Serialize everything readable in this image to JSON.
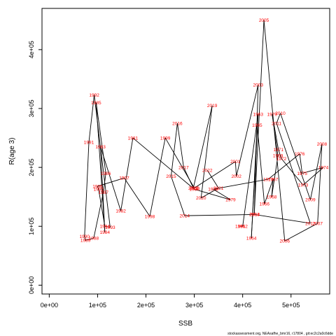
{
  "chart_data": {
    "type": "line",
    "xlabel": "SSB",
    "ylabel": "R(age 3)",
    "xlim": [
      -15000,
      580000
    ],
    "ylim": [
      -15000,
      470000
    ],
    "x_ticks": [
      0,
      100000,
      200000,
      300000,
      400000,
      500000
    ],
    "x_tick_labels": [
      "0e+00",
      "1e+05",
      "2e+05",
      "3e+05",
      "4e+05",
      "5e+05"
    ],
    "y_ticks": [
      0,
      100000,
      200000,
      300000,
      400000
    ],
    "y_tick_labels": [
      "0e+00",
      "1e+05",
      "2e+05",
      "3e+05",
      "4e+05"
    ],
    "grid": false,
    "line_color": "#000000",
    "label_color": "#ff0000",
    "points": [
      {
        "year": "1961",
        "x": 395000,
        "y": 100000
      },
      {
        "year": "1962",
        "x": 400000,
        "y": 100000
      },
      {
        "year": "1963",
        "x": 432000,
        "y": 290000
      },
      {
        "year": "1964",
        "x": 418000,
        "y": 80000
      },
      {
        "year": "1965",
        "x": 430000,
        "y": 272000
      },
      {
        "year": "1966",
        "x": 445000,
        "y": 138000
      },
      {
        "year": "1967",
        "x": 463000,
        "y": 180000
      },
      {
        "year": "1968",
        "x": 460000,
        "y": 150000
      },
      {
        "year": "1969",
        "x": 473000,
        "y": 220000
      },
      {
        "year": "1970",
        "x": 461000,
        "y": 290000
      },
      {
        "year": "1971",
        "x": 474000,
        "y": 230000
      },
      {
        "year": "1972",
        "x": 480000,
        "y": 215000
      },
      {
        "year": "1973",
        "x": 525000,
        "y": 170000
      },
      {
        "year": "1974",
        "x": 567000,
        "y": 200000
      },
      {
        "year": "1975",
        "x": 523000,
        "y": 190000
      },
      {
        "year": "1976",
        "x": 518000,
        "y": 223000
      },
      {
        "year": "1977",
        "x": 453000,
        "y": 180000
      },
      {
        "year": "1978",
        "x": 339000,
        "y": 163000
      },
      {
        "year": "1979",
        "x": 375000,
        "y": 145000
      },
      {
        "year": "1980",
        "x": 300000,
        "y": 163000
      },
      {
        "year": "1981",
        "x": 173000,
        "y": 250000
      },
      {
        "year": "1982",
        "x": 148000,
        "y": 126000
      },
      {
        "year": "1983",
        "x": 106000,
        "y": 235000
      },
      {
        "year": "1984",
        "x": 115000,
        "y": 90000
      },
      {
        "year": "1985",
        "x": 97000,
        "y": 310000
      },
      {
        "year": "1986",
        "x": 117000,
        "y": 190000
      },
      {
        "year": "1987",
        "x": 112000,
        "y": 158000
      },
      {
        "year": "1988",
        "x": 92000,
        "y": 80000
      },
      {
        "year": "1989",
        "x": 75000,
        "y": 76000
      },
      {
        "year": "1990",
        "x": 73000,
        "y": 83000
      },
      {
        "year": "1991",
        "x": 82000,
        "y": 243000
      },
      {
        "year": "1992",
        "x": 93000,
        "y": 323000
      },
      {
        "year": "1993",
        "x": 126000,
        "y": 98000
      },
      {
        "year": "1994",
        "x": 115000,
        "y": 100000
      },
      {
        "year": "1995",
        "x": 102000,
        "y": 163000
      },
      {
        "year": "1996",
        "x": 100000,
        "y": 168000
      },
      {
        "year": "1997",
        "x": 155000,
        "y": 182000
      },
      {
        "year": "1998",
        "x": 208000,
        "y": 117000
      },
      {
        "year": "1999",
        "x": 240000,
        "y": 250000
      },
      {
        "year": "2000",
        "x": 300000,
        "y": 165000
      },
      {
        "year": "2001",
        "x": 385000,
        "y": 210000
      },
      {
        "year": "2002",
        "x": 387000,
        "y": 185000
      },
      {
        "year": "2003",
        "x": 432000,
        "y": 340000
      },
      {
        "year": "2004",
        "x": 424000,
        "y": 120000
      },
      {
        "year": "2005",
        "x": 444000,
        "y": 450000
      },
      {
        "year": "2006",
        "x": 487000,
        "y": 75000
      },
      {
        "year": "2007",
        "x": 555000,
        "y": 105000
      },
      {
        "year": "2008",
        "x": 564000,
        "y": 240000
      },
      {
        "year": "2009",
        "x": 540000,
        "y": 145000
      },
      {
        "year": "2010",
        "x": 478000,
        "y": 292000
      },
      {
        "year": "2011",
        "x": 470000,
        "y": 275000
      },
      {
        "year": "2012",
        "x": 540000,
        "y": 105000
      },
      {
        "year": "2013",
        "x": 425000,
        "y": 120000
      },
      {
        "year": "2014",
        "x": 280000,
        "y": 118000
      },
      {
        "year": "2015",
        "x": 252000,
        "y": 185000
      },
      {
        "year": "2016",
        "x": 265000,
        "y": 275000
      },
      {
        "year": "2017",
        "x": 278000,
        "y": 200000
      },
      {
        "year": "2018",
        "x": 298000,
        "y": 165000
      },
      {
        "year": "2019",
        "x": 337000,
        "y": 305000
      },
      {
        "year": "2020",
        "x": 314000,
        "y": 148000
      },
      {
        "year": "2021",
        "x": 350000,
        "y": 165000
      },
      {
        "year": "2022",
        "x": 327000,
        "y": 195000
      }
    ],
    "path_order": [
      "1961",
      "1962",
      "1963",
      "1964",
      "1965",
      "1966",
      "1967",
      "1968",
      "1969",
      "1970",
      "1971",
      "1972",
      "1973",
      "1974",
      "1975",
      "1976",
      "1977",
      "1978",
      "1979",
      "1980",
      "1981",
      "1982",
      "1983",
      "1984",
      "1985",
      "1986",
      "1987",
      "1988",
      "1989",
      "1990",
      "1991",
      "1992",
      "1993",
      "1994",
      "1995",
      "1996",
      "1997",
      "1998",
      "1999",
      "2000",
      "2001",
      "2002",
      "2003",
      "2004",
      "2005",
      "2006",
      "2007",
      "2008",
      "2009",
      "2010",
      "2011",
      "2012",
      "2013",
      "2014",
      "2015",
      "2016",
      "2017",
      "2018",
      "2019",
      "2020",
      "2021",
      "2022"
    ]
  },
  "footer": {
    "text": "stockassessment.org, NEAsafhe_bmr16, r17804 , git:ec2c2a0c6dde"
  }
}
